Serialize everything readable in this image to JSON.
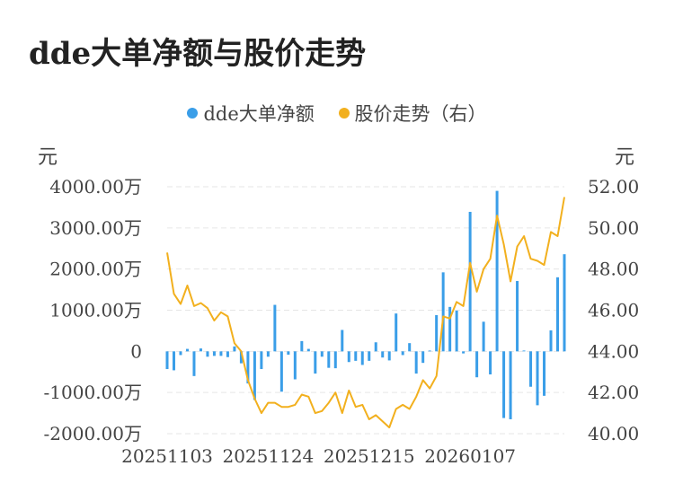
{
  "title": "dde大单净额与股价走势",
  "legend": {
    "bar_label": "dde大单净额",
    "line_label": "股价走势（右）",
    "bar_color": "#3a9ee8",
    "line_color": "#f2b01e"
  },
  "units": {
    "left": "元",
    "right": "元"
  },
  "chart_data": {
    "type": "bar+line",
    "y_left": {
      "min": -2000,
      "max": 4000,
      "ticks": [
        "4000.00万",
        "3000.00万",
        "2000.00万",
        "1000.00万",
        "0",
        "-1000.00万",
        "-2000.00万"
      ]
    },
    "y_right": {
      "min": 40,
      "max": 52,
      "ticks": [
        "52.00",
        "50.00",
        "48.00",
        "46.00",
        "44.00",
        "42.00",
        "40.00"
      ]
    },
    "x_tick_labels": [
      {
        "index": 0,
        "label": "20251103"
      },
      {
        "index": 15,
        "label": "20251124"
      },
      {
        "index": 30,
        "label": "20251215"
      },
      {
        "index": 45,
        "label": "20260107"
      }
    ],
    "series": [
      {
        "name": "dde大单净额",
        "type": "bar",
        "unit": "万",
        "values": [
          -430,
          -460,
          -90,
          60,
          -600,
          70,
          -130,
          -110,
          -110,
          -140,
          120,
          -290,
          -780,
          -1180,
          -430,
          -130,
          1130,
          -980,
          -80,
          -680,
          250,
          60,
          -540,
          -130,
          -400,
          -410,
          520,
          -260,
          -230,
          -330,
          -230,
          220,
          -150,
          -220,
          920,
          -90,
          200,
          -540,
          -280,
          20,
          880,
          1920,
          1080,
          990,
          -50,
          3390,
          -630,
          720,
          -560,
          3900,
          -1620,
          -1650,
          1710,
          20,
          -860,
          -1310,
          -1080,
          510,
          1800,
          2360
        ]
      },
      {
        "name": "股价走势（右）",
        "type": "line",
        "values": [
          48.8,
          46.8,
          46.3,
          47.2,
          46.2,
          46.35,
          46.1,
          45.5,
          45.9,
          45.7,
          44.4,
          44.0,
          42.6,
          41.7,
          41.0,
          41.5,
          41.5,
          41.3,
          41.3,
          41.4,
          41.9,
          41.8,
          41.0,
          41.1,
          41.5,
          42.0,
          41.0,
          42.1,
          41.3,
          41.4,
          40.7,
          40.9,
          40.6,
          40.3,
          41.2,
          41.4,
          41.2,
          41.8,
          42.6,
          42.2,
          42.8,
          45.7,
          45.6,
          46.4,
          46.2,
          48.3,
          46.9,
          48.0,
          48.5,
          50.6,
          49.2,
          47.4,
          49.1,
          49.6,
          48.5,
          48.4,
          48.2,
          49.8,
          49.6,
          51.5
        ]
      }
    ]
  }
}
